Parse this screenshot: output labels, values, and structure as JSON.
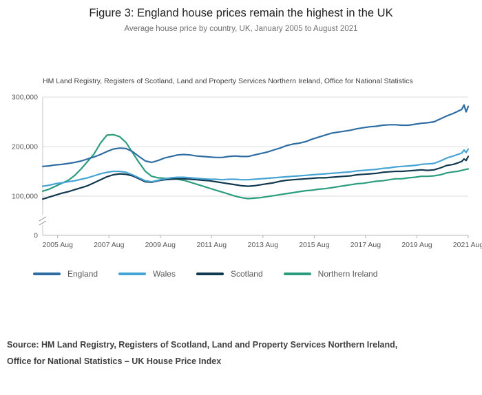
{
  "figure": {
    "title": "Figure 3: England house prices remain the highest in the UK",
    "subtitle": "Average house price by country, UK, January 2005 to August 2021",
    "units_note": "HM Land Registry, Registers of Scotland, Land and Property Services Northern Ireland, Office for National Statistics",
    "source": [
      "Source: HM Land Registry, Registers of Scotland, Land and Property Services Northern Ireland,",
      "Office for National Statistics – UK House Price Index"
    ]
  },
  "chart_data": {
    "type": "line",
    "title": "Figure 3: England house prices remain the highest in the UK",
    "subtitle": "Average house price by country, UK, January 2005 to August 2021",
    "note": "HM Land Registry, Registers of Scotland, Land and Property Services Northern Ireland, Office for National Statistics",
    "values_unit": "GBP thousands",
    "x_unit": "decimal year (Jan 2005 to Aug 2021)",
    "x_min": 2005.0,
    "x_max": 2021.583,
    "axis_break_above_zero": true,
    "grid": "horizontal",
    "legend_position": "bottom",
    "y_ticks": [
      0,
      100,
      200,
      300
    ],
    "y_tick_labels": [
      "0",
      "100,000",
      "200,000",
      "300,000"
    ],
    "x_tick_years": [
      2005.583,
      2007.583,
      2009.583,
      2011.583,
      2013.583,
      2015.583,
      2017.583,
      2019.583,
      2021.583
    ],
    "x_tick_labels": [
      "2005 Aug",
      "2007 Aug",
      "2009 Aug",
      "2011 Aug",
      "2013 Aug",
      "2015 Aug",
      "2017 Aug",
      "2019 Aug",
      "2021 Aug"
    ],
    "x": [
      2005.0,
      2005.25,
      2005.5,
      2005.75,
      2006.0,
      2006.25,
      2006.5,
      2006.75,
      2007.0,
      2007.25,
      2007.5,
      2007.75,
      2008.0,
      2008.25,
      2008.5,
      2008.75,
      2009.0,
      2009.25,
      2009.5,
      2009.75,
      2010.0,
      2010.25,
      2010.5,
      2010.75,
      2011.0,
      2011.25,
      2011.5,
      2011.75,
      2012.0,
      2012.25,
      2012.5,
      2012.75,
      2013.0,
      2013.25,
      2013.5,
      2013.75,
      2014.0,
      2014.25,
      2014.5,
      2014.75,
      2015.0,
      2015.25,
      2015.5,
      2015.75,
      2016.0,
      2016.25,
      2016.5,
      2016.75,
      2017.0,
      2017.25,
      2017.5,
      2017.75,
      2018.0,
      2018.25,
      2018.5,
      2018.75,
      2019.0,
      2019.25,
      2019.5,
      2019.75,
      2020.0,
      2020.25,
      2020.5,
      2020.75,
      2021.0,
      2021.17,
      2021.33,
      2021.42,
      2021.5,
      2021.583
    ],
    "series": [
      {
        "name": "England",
        "color": "#2e6da4",
        "values": [
          160,
          161,
          163,
          164,
          166,
          168,
          171,
          175,
          179,
          184,
          190,
          195,
          197,
          196,
          190,
          180,
          171,
          168,
          172,
          177,
          180,
          183,
          184,
          183,
          181,
          180,
          179,
          178,
          178,
          180,
          181,
          180,
          180,
          183,
          186,
          189,
          193,
          197,
          202,
          205,
          207,
          210,
          215,
          219,
          223,
          227,
          229,
          231,
          233,
          236,
          238,
          240,
          241,
          243,
          244,
          244,
          243,
          243,
          245,
          247,
          248,
          250,
          256,
          262,
          267,
          271,
          275,
          284,
          270,
          281
        ]
      },
      {
        "name": "Wales",
        "color": "#45a4d4",
        "values": [
          120,
          122,
          125,
          127,
          129,
          131,
          134,
          137,
          141,
          145,
          148,
          150,
          150,
          148,
          143,
          137,
          131,
          129,
          132,
          135,
          137,
          138,
          138,
          137,
          136,
          135,
          134,
          134,
          133,
          134,
          134,
          133,
          133,
          134,
          135,
          136,
          137,
          138,
          139,
          140,
          141,
          142,
          143,
          144,
          145,
          146,
          147,
          148,
          149,
          151,
          152,
          153,
          154,
          156,
          157,
          159,
          160,
          161,
          162,
          164,
          165,
          166,
          171,
          177,
          181,
          184,
          187,
          193,
          188,
          195
        ]
      },
      {
        "name": "Scotland",
        "color": "#10384f",
        "values": [
          94,
          98,
          102,
          106,
          109,
          113,
          117,
          121,
          127,
          133,
          139,
          143,
          145,
          144,
          141,
          135,
          129,
          128,
          131,
          133,
          134,
          135,
          135,
          134,
          133,
          132,
          131,
          129,
          127,
          125,
          123,
          121,
          120,
          121,
          123,
          125,
          127,
          130,
          132,
          133,
          134,
          135,
          136,
          137,
          137,
          138,
          139,
          140,
          141,
          143,
          144,
          145,
          146,
          148,
          149,
          150,
          150,
          151,
          152,
          153,
          152,
          153,
          157,
          162,
          164,
          167,
          170,
          175,
          172,
          180
        ]
      },
      {
        "name": "Northern Ireland",
        "color": "#2b9c7d",
        "values": [
          110,
          114,
          120,
          126,
          132,
          142,
          155,
          170,
          185,
          207,
          223,
          224,
          220,
          208,
          188,
          168,
          150,
          140,
          137,
          136,
          135,
          134,
          132,
          128,
          124,
          120,
          116,
          112,
          108,
          104,
          100,
          97,
          95,
          96,
          97,
          99,
          101,
          103,
          105,
          107,
          109,
          111,
          112,
          114,
          115,
          117,
          119,
          121,
          123,
          125,
          126,
          128,
          130,
          131,
          133,
          135,
          135,
          137,
          138,
          140,
          140,
          141,
          143,
          147,
          149,
          150,
          152,
          153,
          154,
          155
        ]
      }
    ]
  }
}
